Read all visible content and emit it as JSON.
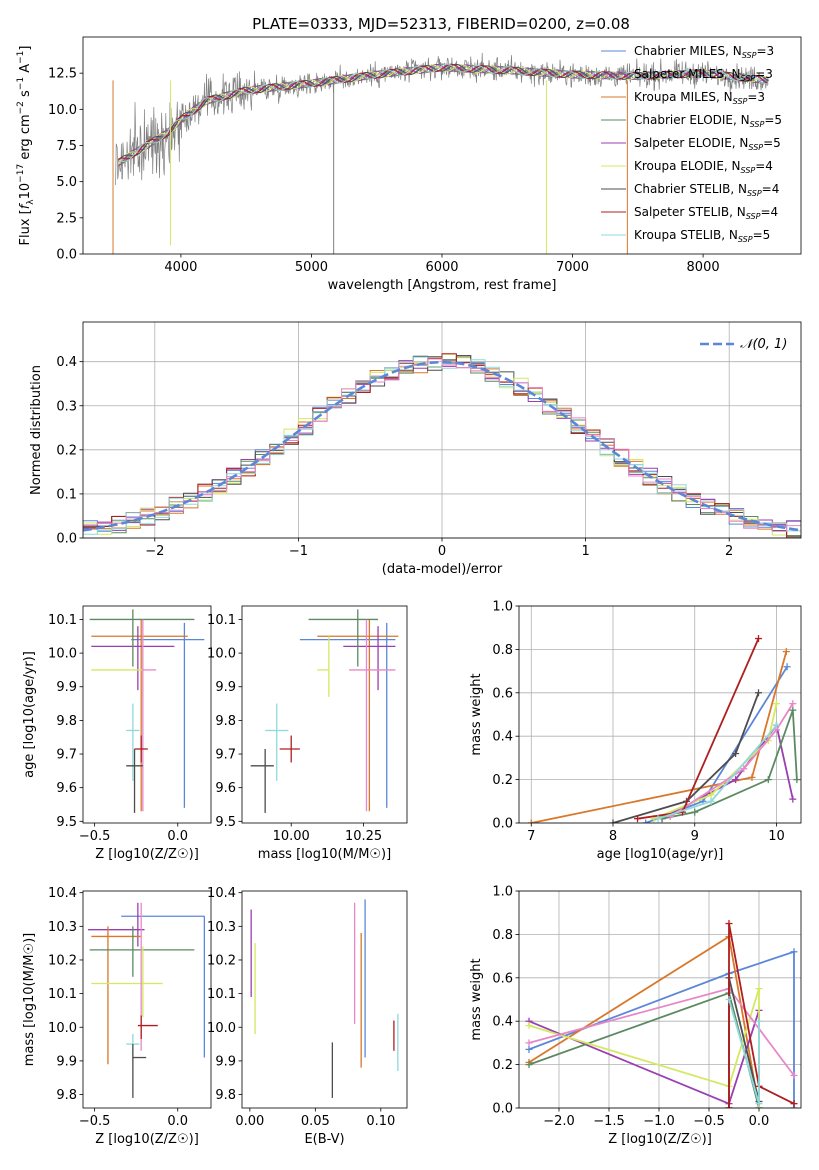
{
  "figure_title": "PLATE=0333, MJD=52313, FIBERID=0200, z=0.08",
  "colors": {
    "chabrier_miles": "#5b87d9",
    "salpeter_miles": "#9a3fb0",
    "kroupa_miles": "#d9772a",
    "chabrier_elodie": "#5b8a62",
    "salpeter_elodie": "#9a3fb0",
    "kroupa_elodie": "#d4e860",
    "chabrier_stelib": "#4d4d4d",
    "salpeter_stelib": "#b01e1e",
    "kroupa_stelib": "#8fd8dc",
    "pink": "#e887c8",
    "data_gray": "#808080",
    "normal_curve": "#5b87d9"
  },
  "chart_data": [
    {
      "id": "spectrum",
      "type": "line",
      "title": "PLATE=0333, MJD=52313, FIBERID=0200, z=0.08",
      "xlabel": "wavelength [Angstrom, rest frame]",
      "ylabel_parts": [
        "Flux [",
        "f",
        "λ",
        "10",
        "−17",
        " erg cm",
        "−2",
        " s",
        "−1",
        " A",
        "−1",
        "]"
      ],
      "xlim": [
        3250,
        8750
      ],
      "ylim": [
        0,
        15
      ],
      "xticks": [
        4000,
        5000,
        6000,
        7000,
        8000
      ],
      "xtick_labels": [
        "4000",
        "5000",
        "6000",
        "7000",
        "8000"
      ],
      "yticks": [
        0,
        2.5,
        5,
        7.5,
        10,
        12.5
      ],
      "ytick_labels": [
        "0.0",
        "2.5",
        "5.0",
        "7.5",
        "10.0",
        "12.5"
      ],
      "continuum": {
        "x": [
          3500,
          3700,
          3900,
          4000,
          4200,
          4500,
          5000,
          5500,
          6000,
          6500,
          7000,
          7500,
          8000,
          8500
        ],
        "y": [
          6.2,
          7.3,
          8.4,
          9.3,
          10.6,
          11.3,
          11.8,
          12.4,
          12.9,
          12.7,
          12.4,
          12.3,
          12.5,
          12.0
        ]
      },
      "legend": [
        {
          "label": "Chabrier MILES, N",
          "sub": "SSP",
          "suffix": "=3",
          "color_key": "chabrier_miles"
        },
        {
          "label": "Salpeter MILES, N",
          "sub": "SSP",
          "suffix": "=3",
          "color_key": "salpeter_miles"
        },
        {
          "label": "Kroupa MILES, N",
          "sub": "SSP",
          "suffix": "=3",
          "color_key": "kroupa_miles"
        },
        {
          "label": "Chabrier ELODIE, N",
          "sub": "SSP",
          "suffix": "=5",
          "color_key": "chabrier_elodie"
        },
        {
          "label": "Salpeter ELODIE, N",
          "sub": "SSP",
          "suffix": "=5",
          "color_key": "salpeter_elodie"
        },
        {
          "label": "Kroupa ELODIE, N",
          "sub": "SSP",
          "suffix": "=4",
          "color_key": "kroupa_elodie"
        },
        {
          "label": "Chabrier STELIB, N",
          "sub": "SSP",
          "suffix": "=4",
          "color_key": "chabrier_stelib"
        },
        {
          "label": "Salpeter STELIB, N",
          "sub": "SSP",
          "suffix": "=4",
          "color_key": "salpeter_stelib"
        },
        {
          "label": "Kroupa STELIB, N",
          "sub": "SSP",
          "suffix": "=5",
          "color_key": "kroupa_stelib"
        }
      ]
    },
    {
      "id": "residuals",
      "type": "line",
      "xlabel": "(data-model)/error",
      "ylabel": "Normed distribution",
      "xlim": [
        -2.5,
        2.5
      ],
      "ylim": [
        0,
        0.49
      ],
      "xticks": [
        -2,
        -1,
        0,
        1,
        2
      ],
      "xtick_labels": [
        "−2",
        "−1",
        "0",
        "1",
        "2"
      ],
      "yticks": [
        0,
        0.1,
        0.2,
        0.3,
        0.4
      ],
      "ytick_labels": [
        "0.0",
        "0.1",
        "0.2",
        "0.3",
        "0.4"
      ],
      "grid": true,
      "legend_label": "𝒩(0, 1)",
      "legend_position": "top-right",
      "bin_width": 0.1
    },
    {
      "id": "age_vs_Z",
      "type": "scatter",
      "xlabel": "Z [log10(Z/Z☉)]",
      "ylabel": "age  [log10(age/yr)]",
      "xlim": [
        -0.57,
        0.2
      ],
      "ylim": [
        9.495,
        10.14
      ],
      "xticks": [
        -0.5,
        0.0
      ],
      "xtick_labels": [
        "−0.5",
        "0.0"
      ],
      "yticks": [
        9.5,
        9.6,
        9.7,
        9.8,
        9.9,
        10.0,
        10.1
      ],
      "ytick_labels": [
        "9.5",
        "9.6",
        "9.7",
        "9.8",
        "9.9",
        "10.0",
        "10.1"
      ],
      "points": [
        {
          "color_key": "chabrier_miles",
          "x": 0.04,
          "xerr": [
            0.32,
            0.12
          ],
          "y": 10.04,
          "yerr": [
            0.5,
            0.05
          ]
        },
        {
          "color_key": "kroupa_miles",
          "x": -0.22,
          "xerr": [
            0.3,
            0.28
          ],
          "y": 10.05,
          "yerr": [
            0.52,
            0.05
          ]
        },
        {
          "color_key": "salpeter_miles",
          "x": -0.24,
          "xerr": [
            0.28,
            0.22
          ],
          "y": 10.02,
          "yerr": [
            0.13,
            0.06
          ]
        },
        {
          "color_key": "chabrier_elodie",
          "x": -0.27,
          "xerr": [
            0.26,
            0.37
          ],
          "y": 10.1,
          "yerr": [
            0.14,
            0.03
          ]
        },
        {
          "color_key": "kroupa_elodie",
          "x": -0.21,
          "xerr": [
            0.31,
            0.0
          ],
          "y": 9.95,
          "yerr": [
            0.08,
            0.1
          ]
        },
        {
          "color_key": "pink",
          "x": -0.21,
          "xerr": [
            0.0,
            0.08
          ],
          "y": 9.95,
          "yerr": [
            0.42,
            0.15
          ]
        },
        {
          "color_key": "kroupa_stelib",
          "x": -0.27,
          "xerr": [
            0.04,
            0.04
          ],
          "y": 9.77,
          "yerr": [
            0.15,
            0.08
          ]
        },
        {
          "color_key": "salpeter_stelib",
          "x": -0.22,
          "xerr": [
            0.04,
            0.04
          ],
          "y": 9.715,
          "yerr": [
            0.04,
            0.04
          ]
        },
        {
          "color_key": "chabrier_stelib",
          "x": -0.26,
          "xerr": [
            0.05,
            0.05
          ],
          "y": 9.665,
          "yerr": [
            0.14,
            0.05
          ]
        }
      ]
    },
    {
      "id": "age_vs_mass",
      "type": "scatter",
      "xlabel": "mass [log10(M/M☉)]",
      "ylabel": "",
      "xlim": [
        9.83,
        10.4
      ],
      "ylim": [
        9.495,
        10.14
      ],
      "xticks": [
        10.0,
        10.25
      ],
      "xtick_labels": [
        "10.00",
        "10.25"
      ],
      "yticks": [
        9.5,
        9.6,
        9.7,
        9.8,
        9.9,
        10.0,
        10.1
      ],
      "ytick_labels": [
        "9.5",
        "9.6",
        "9.7",
        "9.8",
        "9.9",
        "10.0",
        "10.1"
      ],
      "points": [
        {
          "color_key": "chabrier_miles",
          "x": 10.33,
          "xerr": [
            0.3,
            0.03
          ],
          "y": 10.04,
          "yerr": [
            0.5,
            0.05
          ]
        },
        {
          "color_key": "kroupa_miles",
          "x": 10.27,
          "xerr": [
            0.18,
            0.1
          ],
          "y": 10.05,
          "yerr": [
            0.52,
            0.05
          ]
        },
        {
          "color_key": "salpeter_miles",
          "x": 10.3,
          "xerr": [
            0.12,
            0.06
          ],
          "y": 10.02,
          "yerr": [
            0.13,
            0.06
          ]
        },
        {
          "color_key": "chabrier_elodie",
          "x": 10.23,
          "xerr": [
            0.17,
            0.07
          ],
          "y": 10.1,
          "yerr": [
            0.14,
            0.03
          ]
        },
        {
          "color_key": "kroupa_elodie",
          "x": 10.13,
          "xerr": [
            0.04,
            0.0
          ],
          "y": 9.95,
          "yerr": [
            0.08,
            0.1
          ]
        },
        {
          "color_key": "pink",
          "x": 10.26,
          "xerr": [
            0.06,
            0.1
          ],
          "y": 9.95,
          "yerr": [
            0.42,
            0.15
          ]
        },
        {
          "color_key": "kroupa_stelib",
          "x": 9.95,
          "xerr": [
            0.04,
            0.04
          ],
          "y": 9.77,
          "yerr": [
            0.15,
            0.08
          ]
        },
        {
          "color_key": "salpeter_stelib",
          "x": 10.0,
          "xerr": [
            0.04,
            0.03
          ],
          "y": 9.715,
          "yerr": [
            0.04,
            0.04
          ]
        },
        {
          "color_key": "chabrier_stelib",
          "x": 9.91,
          "xerr": [
            0.05,
            0.03
          ],
          "y": 9.665,
          "yerr": [
            0.14,
            0.05
          ]
        }
      ]
    },
    {
      "id": "weight_vs_age",
      "type": "line",
      "xlabel": "age  [log10(age/yr)]",
      "ylabel": "mass weight",
      "xlim": [
        6.85,
        10.3
      ],
      "ylim": [
        0,
        1
      ],
      "xticks": [
        7,
        8,
        9,
        10
      ],
      "xtick_labels": [
        "7",
        "8",
        "9",
        "10"
      ],
      "yticks": [
        0,
        0.2,
        0.4,
        0.6,
        0.8,
        1.0
      ],
      "ytick_labels": [
        "0.0",
        "0.2",
        "0.4",
        "0.6",
        "0.8",
        "1.0"
      ],
      "grid": true,
      "series": [
        {
          "color_key": "chabrier_miles",
          "x": [
            8.4,
            9.1,
            10.13
          ],
          "y": [
            0.0,
            0.1,
            0.72
          ]
        },
        {
          "color_key": "kroupa_miles",
          "x": [
            7.0,
            9.7,
            10.12
          ],
          "y": [
            0.0,
            0.21,
            0.79
          ]
        },
        {
          "color_key": "salpeter_miles",
          "x": [
            8.6,
            9.5,
            10.0,
            10.2
          ],
          "y": [
            0.02,
            0.2,
            0.45,
            0.11
          ]
        },
        {
          "color_key": "chabrier_elodie",
          "x": [
            8.6,
            9.0,
            9.9,
            10.2,
            10.25
          ],
          "y": [
            0.02,
            0.05,
            0.2,
            0.52,
            0.2
          ]
        },
        {
          "color_key": "kroupa_elodie",
          "x": [
            8.5,
            9.2,
            9.9,
            10.0
          ],
          "y": [
            0.02,
            0.13,
            0.38,
            0.55
          ]
        },
        {
          "color_key": "pink",
          "x": [
            8.7,
            9.6,
            10.0,
            10.2
          ],
          "y": [
            0.03,
            0.25,
            0.43,
            0.55
          ]
        },
        {
          "color_key": "chabrier_stelib",
          "x": [
            8.0,
            8.9,
            9.5,
            9.78
          ],
          "y": [
            0.0,
            0.1,
            0.32,
            0.6
          ]
        },
        {
          "color_key": "salpeter_stelib",
          "x": [
            8.3,
            8.85,
            9.78
          ],
          "y": [
            0.02,
            0.05,
            0.85
          ]
        },
        {
          "color_key": "kroupa_stelib",
          "x": [
            8.55,
            9.2,
            10.0
          ],
          "y": [
            0.02,
            0.1,
            0.45
          ]
        }
      ]
    },
    {
      "id": "mass_vs_Z",
      "type": "scatter",
      "xlabel": "Z [log10(Z/Z☉)]",
      "ylabel": "mass [log10(M/M☉)]",
      "xlim": [
        -0.57,
        0.2
      ],
      "ylim": [
        9.76,
        10.405
      ],
      "xticks": [
        -0.5,
        0.0
      ],
      "xtick_labels": [
        "−0.5",
        "0.0"
      ],
      "yticks": [
        9.8,
        9.9,
        10.0,
        10.1,
        10.2,
        10.3,
        10.4
      ],
      "ytick_labels": [
        "9.8",
        "9.9",
        "10.0",
        "10.1",
        "10.2",
        "10.3",
        "10.4"
      ],
      "points": [
        {
          "color_key": "chabrier_miles",
          "x": 0.16,
          "xerr": [
            0.5,
            0.0
          ],
          "y": 10.33,
          "yerr": [
            0.42,
            0.0
          ]
        },
        {
          "color_key": "salpeter_miles",
          "x": -0.24,
          "xerr": [
            0.3,
            0.04
          ],
          "y": 10.29,
          "yerr": [
            0.05,
            0.08
          ]
        },
        {
          "color_key": "kroupa_miles",
          "x": -0.42,
          "xerr": [
            0.1,
            0.2
          ],
          "y": 10.27,
          "yerr": [
            0.38,
            0.03
          ]
        },
        {
          "color_key": "chabrier_elodie",
          "x": -0.27,
          "xerr": [
            0.26,
            0.37
          ],
          "y": 10.23,
          "yerr": [
            0.08,
            0.07
          ]
        },
        {
          "color_key": "kroupa_elodie",
          "x": -0.21,
          "xerr": [
            0.31,
            0.12
          ],
          "y": 10.13,
          "yerr": [
            0.1,
            0.11
          ]
        },
        {
          "color_key": "pink",
          "x": -0.22,
          "xerr": [
            0.0,
            0.0
          ],
          "y": 10.25,
          "yerr": [
            0.32,
            0.12
          ]
        },
        {
          "color_key": "kroupa_stelib",
          "x": -0.27,
          "xerr": [
            0.04,
            0.04
          ],
          "y": 9.95,
          "yerr": [
            0.05,
            0.03
          ]
        },
        {
          "color_key": "salpeter_stelib",
          "x": -0.22,
          "xerr": [
            0.02,
            0.1
          ],
          "y": 10.005,
          "yerr": [
            0.04,
            0.03
          ]
        },
        {
          "color_key": "chabrier_stelib",
          "x": -0.27,
          "xerr": [
            0.0,
            0.08
          ],
          "y": 9.91,
          "yerr": [
            0.12,
            0.04
          ]
        }
      ]
    },
    {
      "id": "mass_vs_ebv",
      "type": "scatter",
      "xlabel": "E(B-V)",
      "ylabel": "",
      "xlim": [
        -0.006,
        0.12
      ],
      "ylim": [
        9.76,
        10.405
      ],
      "xticks": [
        0.0,
        0.05,
        0.1
      ],
      "xtick_labels": [
        "0.00",
        "0.05",
        "0.10"
      ],
      "yticks": [
        9.8,
        9.9,
        10.0,
        10.1,
        10.2,
        10.3,
        10.4
      ],
      "ytick_labels": [
        "9.8",
        "9.9",
        "10.0",
        "10.1",
        "10.2",
        "10.3",
        "10.4"
      ],
      "segments": [
        {
          "color_key": "salpeter_miles",
          "x": 0.001,
          "y": [
            10.09,
            10.35
          ]
        },
        {
          "color_key": "kroupa_elodie",
          "x": 0.004,
          "y": [
            9.98,
            10.25
          ]
        },
        {
          "color_key": "chabrier_stelib",
          "x": 0.063,
          "y": [
            9.79,
            9.955
          ]
        },
        {
          "color_key": "pink",
          "x": 0.08,
          "y": [
            10.01,
            10.37
          ]
        },
        {
          "color_key": "kroupa_miles",
          "x": 0.085,
          "y": [
            9.88,
            10.28
          ]
        },
        {
          "color_key": "chabrier_miles",
          "x": 0.088,
          "y": [
            9.91,
            10.38
          ]
        },
        {
          "color_key": "salpeter_stelib",
          "x": 0.11,
          "y": [
            9.93,
            10.02
          ]
        },
        {
          "color_key": "kroupa_stelib",
          "x": 0.113,
          "y": [
            9.87,
            10.04
          ]
        }
      ]
    },
    {
      "id": "weight_vs_Z",
      "type": "line",
      "xlabel": "Z [log10(Z/Z☉)]",
      "ylabel": "mass weight",
      "xlim": [
        -2.4,
        0.42
      ],
      "ylim": [
        0,
        1
      ],
      "xticks": [
        -2.0,
        -1.5,
        -1.0,
        -0.5,
        0.0
      ],
      "xtick_labels": [
        "−2.0",
        "−1.5",
        "−1.0",
        "−0.5",
        "0.0"
      ],
      "yticks": [
        0,
        0.2,
        0.4,
        0.6,
        0.8,
        1.0
      ],
      "ytick_labels": [
        "0.0",
        "0.2",
        "0.4",
        "0.6",
        "0.8",
        "1.0"
      ],
      "grid": true,
      "series": [
        {
          "color_key": "chabrier_miles",
          "x": [
            -2.3,
            -0.3,
            0.35,
            0.35
          ],
          "y": [
            0.27,
            0.62,
            0.72,
            0.0
          ]
        },
        {
          "color_key": "kroupa_miles",
          "x": [
            -2.3,
            -0.3,
            0.0
          ],
          "y": [
            0.21,
            0.79,
            0.0
          ]
        },
        {
          "color_key": "salpeter_miles",
          "x": [
            -2.3,
            -0.3,
            0.0,
            0.0
          ],
          "y": [
            0.4,
            0.02,
            0.45,
            0.0
          ]
        },
        {
          "color_key": "chabrier_elodie",
          "x": [
            -2.3,
            -0.3,
            0.0
          ],
          "y": [
            0.2,
            0.53,
            0.0
          ]
        },
        {
          "color_key": "kroupa_elodie",
          "x": [
            -2.3,
            -0.3,
            0.0,
            0.0
          ],
          "y": [
            0.38,
            0.1,
            0.55,
            0.0
          ]
        },
        {
          "color_key": "pink",
          "x": [
            -2.3,
            -0.3,
            0.35
          ],
          "y": [
            0.3,
            0.55,
            0.15
          ]
        },
        {
          "color_key": "chabrier_stelib",
          "x": [
            -0.3,
            -0.3,
            0.0
          ],
          "y": [
            0.0,
            0.6,
            0.03
          ]
        },
        {
          "color_key": "salpeter_stelib",
          "x": [
            -0.3,
            -0.3,
            0.0,
            0.35
          ],
          "y": [
            0.0,
            0.85,
            0.1,
            0.02
          ]
        },
        {
          "color_key": "kroupa_stelib",
          "x": [
            -0.3,
            0.0,
            0.0
          ],
          "y": [
            0.5,
            0.02,
            0.4
          ]
        }
      ]
    }
  ]
}
